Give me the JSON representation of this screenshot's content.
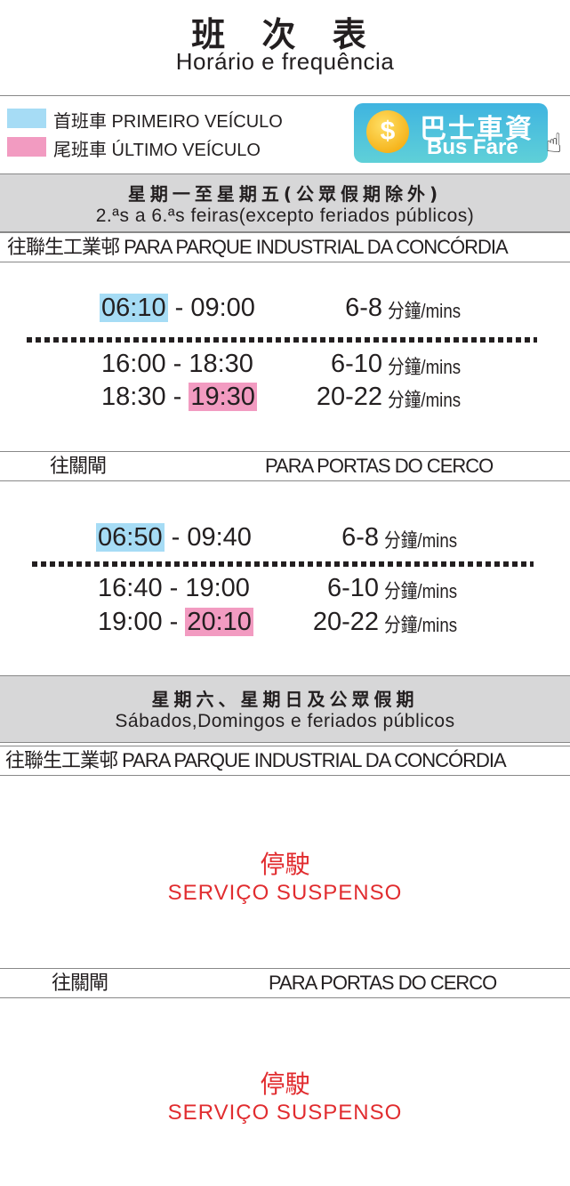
{
  "header": {
    "title": "班 次 表",
    "subtitle": "Horário e frequência"
  },
  "legend": {
    "first": {
      "label": "首班車 PRIMEIRO VEÍCULO",
      "color": "#a6dcf5"
    },
    "last": {
      "label": "尾班車 ÚLTIMO VEÍCULO",
      "color": "#f29bc1"
    }
  },
  "bus_fare": {
    "zh": "巴士車資",
    "en": "Bus Fare",
    "icon": "coin-dollar-icon",
    "coin": "$"
  },
  "weekday": {
    "title_zh": "星期一至星期五(公眾假期除外)",
    "title_pt": "2.ªs a 6.ªs feiras(excepto feriados públicos)",
    "routes": [
      {
        "dest_zh": "往聯生工業邨",
        "dest_pt": "PARA PARQUE INDUSTRIAL DA CONCÓRDIA",
        "rows": [
          {
            "start": "06:10",
            "sep": " - ",
            "end": "09:00",
            "interval": "6-8",
            "unit": "分鐘/mins"
          },
          {
            "start": "16:00",
            "sep": " - ",
            "end": "18:30",
            "interval": "6-10",
            "unit": "分鐘/mins"
          },
          {
            "start": "18:30",
            "sep": " - ",
            "end": "19:30",
            "interval": "20-22",
            "unit": "分鐘/mins"
          }
        ]
      },
      {
        "dest_zh": "往關閘",
        "dest_pt": "PARA PORTAS DO CERCO",
        "rows": [
          {
            "start": "06:50",
            "sep": " - ",
            "end": "09:40",
            "interval": "6-8",
            "unit": "分鐘/mins"
          },
          {
            "start": "16:40",
            "sep": " - ",
            "end": "19:00",
            "interval": "6-10",
            "unit": "分鐘/mins"
          },
          {
            "start": "19:00",
            "sep": " - ",
            "end": "20:10",
            "interval": "20-22",
            "unit": "分鐘/mins"
          }
        ]
      }
    ]
  },
  "weekend": {
    "title_zh": "星期六、星期日及公眾假期",
    "title_pt": "Sábados,Domingos e feriados públicos",
    "routes": [
      {
        "dest_zh": "往聯生工業邨",
        "dest_pt": "PARA PARQUE INDUSTRIAL DA CONCÓRDIA",
        "status_zh": "停駛",
        "status_pt": "SERVIÇO SUSPENSO"
      },
      {
        "dest_zh": "往關閘",
        "dest_pt": "PARA PORTAS DO CERCO",
        "status_zh": "停駛",
        "status_pt": "SERVIÇO SUSPENSO"
      }
    ]
  }
}
